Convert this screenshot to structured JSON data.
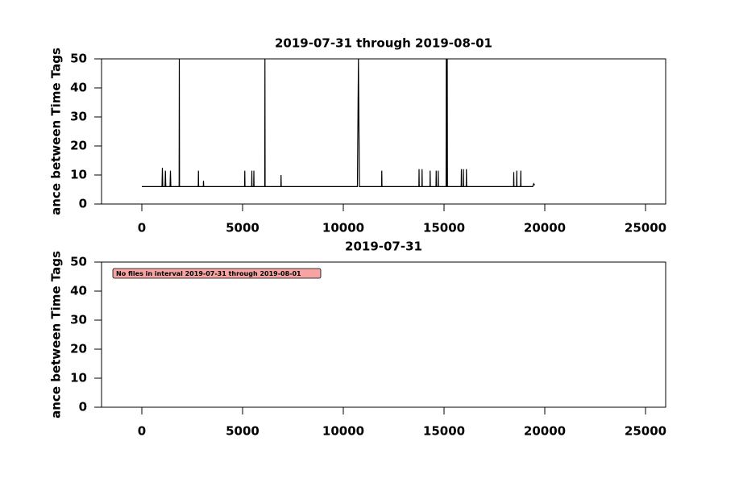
{
  "chart_data": [
    {
      "type": "line",
      "title": "2019-07-31 through 2019-08-01",
      "ylabel": "ance between Time Tags",
      "xlim": [
        -2000,
        26000
      ],
      "xticks": [
        0,
        5000,
        10000,
        15000,
        20000,
        25000
      ],
      "ylim": [
        0,
        50
      ],
      "yticks": [
        0,
        10,
        20,
        30,
        40,
        50
      ],
      "series": [
        {
          "color": "#000000",
          "x": [
            0,
            1000,
            1020,
            1040,
            1150,
            1170,
            1190,
            1400,
            1420,
            1440,
            1850,
            1860,
            1870,
            2800,
            2810,
            2820,
            3050,
            3060,
            3070,
            5100,
            5110,
            5120,
            5450,
            5460,
            5470,
            5550,
            5560,
            5570,
            6100,
            6110,
            6120,
            6900,
            6910,
            6920,
            10700,
            10750,
            10800,
            11900,
            11910,
            11920,
            13750,
            13760,
            13770,
            13900,
            13910,
            13920,
            14300,
            14310,
            14320,
            14600,
            14610,
            14620,
            14700,
            14710,
            14720,
            15100,
            15110,
            15120,
            15150,
            15160,
            15170,
            15850,
            15860,
            15870,
            15950,
            15960,
            15970,
            16100,
            16110,
            16120,
            18450,
            18460,
            18470,
            18600,
            18610,
            18620,
            18800,
            18810,
            18820,
            19400,
            19450,
            19500
          ],
          "values": [
            6,
            6,
            12.5,
            6,
            6,
            11.5,
            6,
            6,
            11.5,
            6,
            6,
            50,
            6,
            6,
            11.5,
            6,
            6,
            8,
            6,
            6,
            11.5,
            6,
            6,
            11.5,
            6,
            6,
            11.5,
            6,
            6,
            50,
            6,
            6,
            10,
            6,
            6,
            50,
            6,
            6,
            11.5,
            6,
            6,
            12,
            6,
            6,
            12,
            6,
            6,
            11.5,
            6,
            6,
            11.5,
            6,
            6,
            11.5,
            6,
            6,
            50,
            6,
            6,
            50,
            6,
            6,
            12,
            6,
            6,
            12,
            6,
            6,
            12,
            6,
            6,
            11,
            6,
            6,
            11.5,
            6,
            6,
            11.5,
            6,
            6,
            7,
            6.5
          ]
        }
      ]
    },
    {
      "type": "line",
      "title": "2019-07-31",
      "ylabel": "ance between Time Tags",
      "annotation": "No files in interval 2019-07-31 through 2019-08-01",
      "xlim": [
        -2000,
        26000
      ],
      "xticks": [
        0,
        5000,
        10000,
        15000,
        20000,
        25000
      ],
      "ylim": [
        0,
        50
      ],
      "yticks": [
        0,
        10,
        20,
        30,
        40,
        50
      ],
      "series": []
    }
  ]
}
